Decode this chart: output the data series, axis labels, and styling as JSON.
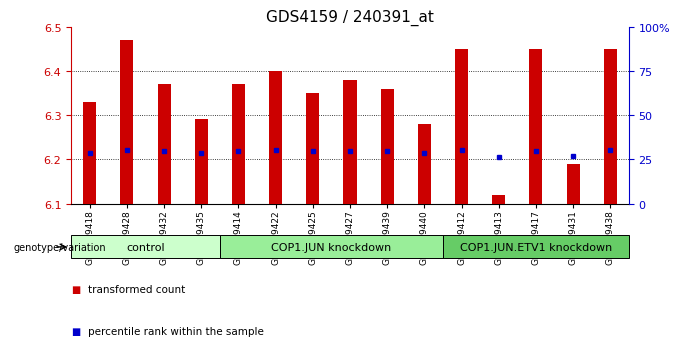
{
  "title": "GDS4159 / 240391_at",
  "samples": [
    "GSM689418",
    "GSM689428",
    "GSM689432",
    "GSM689435",
    "GSM689414",
    "GSM689422",
    "GSM689425",
    "GSM689427",
    "GSM689439",
    "GSM689440",
    "GSM689412",
    "GSM689413",
    "GSM689417",
    "GSM689431",
    "GSM689438"
  ],
  "bar_values": [
    6.33,
    6.47,
    6.37,
    6.29,
    6.37,
    6.4,
    6.35,
    6.38,
    6.36,
    6.28,
    6.45,
    6.12,
    6.45,
    6.19,
    6.45
  ],
  "percentile_values": [
    6.215,
    6.22,
    6.218,
    6.215,
    6.218,
    6.222,
    6.218,
    6.218,
    6.218,
    6.215,
    6.222,
    6.205,
    6.218,
    6.208,
    6.222
  ],
  "bar_bottom": 6.1,
  "ylim_left": [
    6.1,
    6.5
  ],
  "ylim_right": [
    0,
    100
  ],
  "yticks_left": [
    6.1,
    6.2,
    6.3,
    6.4,
    6.5
  ],
  "yticks_right": [
    0,
    25,
    50,
    75,
    100
  ],
  "groups": [
    {
      "label": "control",
      "start": 0,
      "end": 4,
      "color": "#ccffcc"
    },
    {
      "label": "COP1.JUN knockdown",
      "start": 4,
      "end": 10,
      "color": "#99ee99"
    },
    {
      "label": "COP1.JUN.ETV1 knockdown",
      "start": 10,
      "end": 15,
      "color": "#66cc66"
    }
  ],
  "bar_color": "#cc0000",
  "dot_color": "#0000cc",
  "left_axis_color": "#cc0000",
  "right_axis_color": "#0000cc",
  "grid_color": "#000000",
  "background_color": "#ffffff",
  "legend_items": [
    {
      "label": "transformed count",
      "color": "#cc0000",
      "marker": "s"
    },
    {
      "label": "percentile rank within the sample",
      "color": "#0000cc",
      "marker": "s"
    }
  ],
  "genotype_label": "genotype/variation",
  "title_fontsize": 11,
  "tick_fontsize": 8,
  "group_label_fontsize": 8,
  "sample_fontsize": 6.5
}
